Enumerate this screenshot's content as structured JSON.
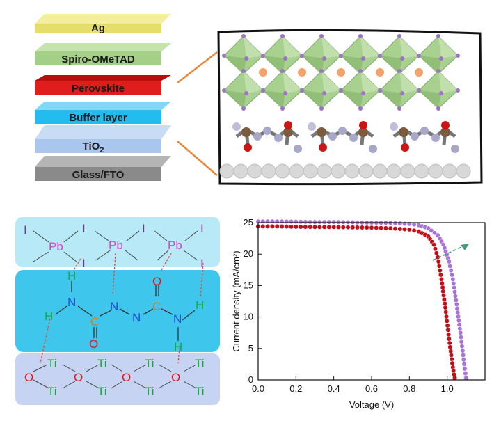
{
  "device_stack": {
    "layers": [
      {
        "name": "Ag",
        "color": "#e9e27a"
      },
      {
        "name": "Spiro-OMeTAD",
        "color": "#a9d48a"
      },
      {
        "name": "Perovskite",
        "color": "#dd1d1d"
      },
      {
        "name": "Buffer layer",
        "color": "#2cc1ef"
      },
      {
        "name": "TiO",
        "sub": "2",
        "color": "#b4cdee"
      },
      {
        "name": "Glass/FTO",
        "color": "#8e8e8e"
      }
    ]
  },
  "crystal_panel": {
    "colors": {
      "octahedron": "#a8d08e",
      "cation": "#f4a26a",
      "iodide": "#9f73c9",
      "carbon": "#7b5a3e",
      "oxygen": "#cc1616",
      "nitrogen": "#a8a8c8",
      "substrate": "#d8d8d8"
    }
  },
  "interaction_diagram": {
    "pb_labels": [
      "Pb",
      "Pb",
      "Pb"
    ],
    "i_labels": [
      "I",
      "I",
      "I",
      "I",
      "I",
      "I"
    ],
    "molecule_atoms": {
      "h": "H",
      "n": "N",
      "c": "C",
      "o": "O"
    },
    "ti_labels": [
      "Ti",
      "Ti",
      "Ti",
      "Ti",
      "Ti",
      "Ti",
      "Ti",
      "Ti"
    ],
    "o_labels": [
      "O",
      "O",
      "O",
      "O"
    ],
    "colors": {
      "pbi_band": "#b7e9f7",
      "molecule_band": "#3fc6ec",
      "tio2_band": "#c6d3f3",
      "i": "#7d2f8e",
      "pb": "#e43ec4",
      "h": "#1aa845",
      "n": "#1f4ed1",
      "c": "#d4811a",
      "o": "#e01616",
      "ti": "#1aa845"
    }
  },
  "chart_data": {
    "type": "line",
    "xlabel": "Voltage (V)",
    "ylabel": "Current density (mA/cm²)",
    "xlim": [
      0.0,
      1.2
    ],
    "ylim": [
      0,
      25
    ],
    "xticks": [
      "0.0",
      "0.2",
      "0.4",
      "0.6",
      "0.8",
      "1.0"
    ],
    "yticks": [
      "0",
      "5",
      "10",
      "15",
      "20",
      "25"
    ],
    "series": [
      {
        "color": "#c0111b",
        "x": [
          0,
          0.1,
          0.2,
          0.3,
          0.4,
          0.5,
          0.6,
          0.7,
          0.8,
          0.85,
          0.9,
          0.93,
          0.95,
          0.97,
          0.99,
          1.01,
          1.03,
          1.04
        ],
        "y": [
          24.4,
          24.4,
          24.35,
          24.3,
          24.3,
          24.25,
          24.2,
          24.1,
          23.9,
          23.6,
          22.8,
          21.5,
          19.5,
          16.0,
          11.5,
          6.5,
          2.0,
          0.3
        ]
      },
      {
        "color": "#a974d8",
        "x": [
          0,
          0.1,
          0.2,
          0.3,
          0.4,
          0.5,
          0.6,
          0.7,
          0.8,
          0.85,
          0.9,
          0.95,
          0.98,
          1.01,
          1.03,
          1.05,
          1.07,
          1.09,
          1.1
        ],
        "y": [
          25.2,
          25.2,
          25.15,
          25.1,
          25.1,
          25.05,
          25.0,
          24.95,
          24.8,
          24.6,
          24.1,
          23.0,
          21.5,
          18.8,
          16.0,
          12.0,
          7.5,
          2.5,
          0.3
        ]
      }
    ],
    "arrow_color": "#3f9b7a"
  }
}
